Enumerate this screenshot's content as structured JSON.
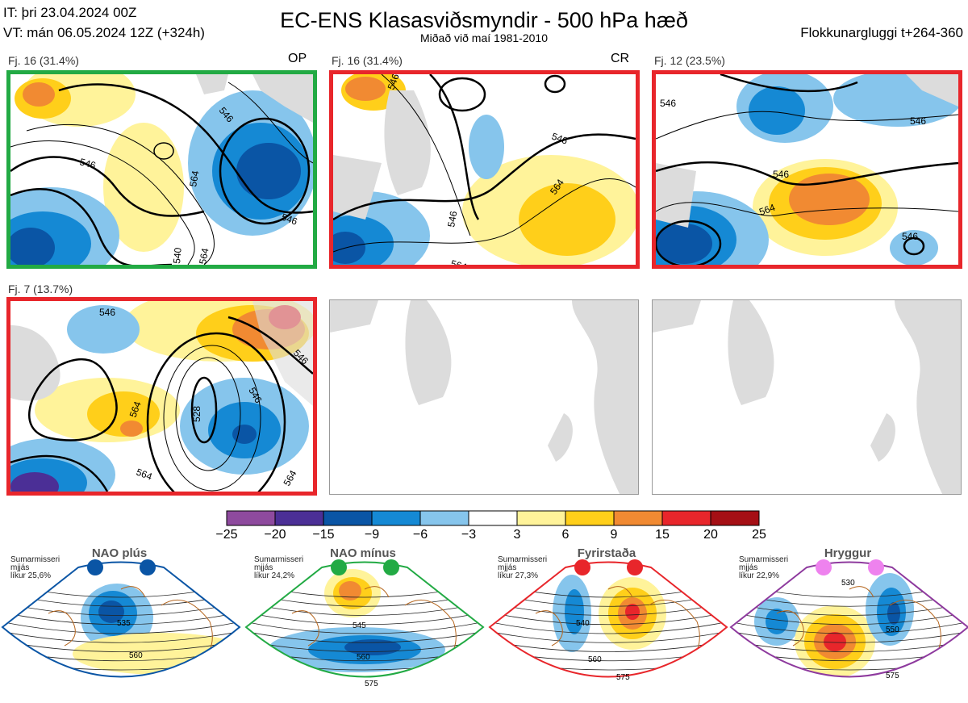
{
  "header": {
    "it": "IT: þri 23.04.2024 00Z",
    "vt": "VT: mán 06.05.2024 12Z  (+324h)",
    "title": "EC-ENS Klasasviðsmyndir - 500 hPa hæð",
    "subtitle": "Miðað við maí 1981-2010",
    "window": "Flokkunargluggi t+264-360"
  },
  "panels": [
    {
      "label": "Fj. 16 (31.4%)",
      "tag": "OP",
      "frame_color": "#22aa44",
      "contours": [
        "546",
        "546",
        "546",
        "564",
        "540",
        "564"
      ]
    },
    {
      "label": "Fj. 16 (31.4%)",
      "tag": "CR",
      "frame_color": "#e8262b",
      "contours": [
        "546",
        "546",
        "546",
        "564",
        "564"
      ]
    },
    {
      "label": "Fj. 12 (23.5%)",
      "tag": "",
      "frame_color": "#e8262b",
      "contours": [
        "546",
        "546",
        "546",
        "564",
        "546"
      ]
    },
    {
      "label": "Fj. 7 (13.7%)",
      "tag": "",
      "frame_color": "#e8262b",
      "contours": [
        "546",
        "564",
        "546",
        "528",
        "546",
        "564",
        "564"
      ]
    }
  ],
  "chart_data": {
    "type": "heatmap",
    "title": "EC-ENS Klasasviðsmyndir - 500 hPa hæð",
    "colorbar": {
      "ticks": [
        "−25",
        "−20",
        "−15",
        "−9",
        "−6",
        "−3",
        "3",
        "6",
        "9",
        "15",
        "20",
        "25"
      ],
      "colors": [
        "#8e4a9e",
        "#4b2f96",
        "#0a55a5",
        "#1589d4",
        "#86c5ec",
        "#ffffff",
        "#fff39a",
        "#ffcf1a",
        "#f18a32",
        "#e8262b",
        "#a50f15"
      ]
    },
    "clusters": [
      {
        "label": "Fj. 16 (31.4%)",
        "tag": "OP",
        "members": 16,
        "percent": 31.4
      },
      {
        "label": "Fj. 16 (31.4%)",
        "tag": "CR",
        "members": 16,
        "percent": 31.4
      },
      {
        "label": "Fj. 12 (23.5%)",
        "members": 12,
        "percent": 23.5
      },
      {
        "label": "Fj. 7 (13.7%)",
        "members": 7,
        "percent": 13.7
      }
    ],
    "regimes": [
      {
        "name": "NAO plús",
        "info": [
          "Sumarmisseri",
          "mjjás",
          "líkur 25,6%"
        ],
        "frame_color": "#0a55a5",
        "dot_color": "#0a55a5",
        "contours": [
          "535",
          "560"
        ]
      },
      {
        "name": "NAO mínus",
        "info": [
          "Sumarmisseri",
          "mjjás",
          "líkur 24,2%"
        ],
        "frame_color": "#22aa44",
        "dot_color": "#22aa44",
        "contours": [
          "545",
          "560",
          "575"
        ]
      },
      {
        "name": "Fyrirstaða",
        "info": [
          "Sumarmisseri",
          "mjjás",
          "líkur 27,3%"
        ],
        "frame_color": "#e8262b",
        "dot_color": "#e8262b",
        "contours": [
          "540",
          "560",
          "575"
        ]
      },
      {
        "name": "Hryggur",
        "info": [
          "Sumarmisseri",
          "mjjás",
          "líkur 22,9%"
        ],
        "frame_color": "#8e3a9e",
        "dot_color": "#ee82ee",
        "contours": [
          "530",
          "550",
          "575"
        ]
      }
    ]
  }
}
